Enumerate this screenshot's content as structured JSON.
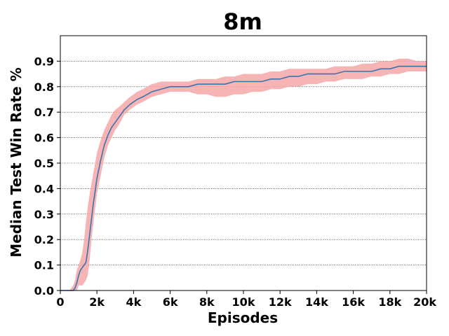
{
  "chart_data": {
    "type": "line",
    "title": "8m",
    "xlabel": "Episodes",
    "ylabel": "Median Test Win Rate %",
    "xlim": [
      0,
      20000
    ],
    "ylim": [
      0,
      1.0
    ],
    "grid": "horizontal-dotted",
    "x_ticks": [
      {
        "value": 0,
        "label": "0"
      },
      {
        "value": 2000,
        "label": "2k"
      },
      {
        "value": 4000,
        "label": "4k"
      },
      {
        "value": 6000,
        "label": "6k"
      },
      {
        "value": 8000,
        "label": "8k"
      },
      {
        "value": 10000,
        "label": "10k"
      },
      {
        "value": 12000,
        "label": "12k"
      },
      {
        "value": 14000,
        "label": "14k"
      },
      {
        "value": 16000,
        "label": "16k"
      },
      {
        "value": 18000,
        "label": "18k"
      },
      {
        "value": 20000,
        "label": "20k"
      }
    ],
    "y_ticks": [
      {
        "value": 0.0,
        "label": "0.0"
      },
      {
        "value": 0.1,
        "label": "0.1"
      },
      {
        "value": 0.2,
        "label": "0.2"
      },
      {
        "value": 0.3,
        "label": "0.3"
      },
      {
        "value": 0.4,
        "label": "0.4"
      },
      {
        "value": 0.5,
        "label": "0.5"
      },
      {
        "value": 0.6,
        "label": "0.6"
      },
      {
        "value": 0.7,
        "label": "0.7"
      },
      {
        "value": 0.8,
        "label": "0.8"
      },
      {
        "value": 0.9,
        "label": "0.9"
      }
    ],
    "colors": {
      "line": "#3b75af",
      "band": "#f4a7a7"
    },
    "series": [
      {
        "x": [
          0,
          500,
          700,
          800,
          900,
          1000,
          1100,
          1200,
          1300,
          1400,
          1500,
          1600,
          1700,
          1800,
          1900,
          2000,
          2200,
          2400,
          2600,
          2800,
          3000,
          3200,
          3500,
          3800,
          4000,
          4200,
          4500,
          5000,
          5500,
          6000,
          6500,
          7000,
          7500,
          8000,
          8500,
          9000,
          9500,
          10000,
          10500,
          11000,
          11500,
          12000,
          12500,
          13000,
          13500,
          14000,
          14500,
          15000,
          15500,
          16000,
          16500,
          17000,
          17500,
          18000,
          18500,
          19000,
          19500,
          20000
        ],
        "y": [
          0.0,
          0.0,
          0.0,
          0.01,
          0.03,
          0.06,
          0.08,
          0.09,
          0.1,
          0.11,
          0.16,
          0.22,
          0.28,
          0.34,
          0.39,
          0.44,
          0.51,
          0.57,
          0.61,
          0.64,
          0.66,
          0.68,
          0.71,
          0.73,
          0.74,
          0.75,
          0.76,
          0.78,
          0.79,
          0.8,
          0.8,
          0.8,
          0.81,
          0.81,
          0.81,
          0.81,
          0.82,
          0.82,
          0.82,
          0.82,
          0.83,
          0.83,
          0.84,
          0.84,
          0.85,
          0.85,
          0.85,
          0.85,
          0.86,
          0.86,
          0.86,
          0.86,
          0.87,
          0.87,
          0.88,
          0.88,
          0.88,
          0.88
        ],
        "lower": [
          0.0,
          0.0,
          0.0,
          0.0,
          0.0,
          0.02,
          0.02,
          0.02,
          0.03,
          0.04,
          0.06,
          0.12,
          0.2,
          0.26,
          0.32,
          0.38,
          0.45,
          0.52,
          0.57,
          0.6,
          0.63,
          0.65,
          0.69,
          0.71,
          0.72,
          0.73,
          0.74,
          0.76,
          0.77,
          0.78,
          0.78,
          0.78,
          0.77,
          0.77,
          0.76,
          0.76,
          0.77,
          0.77,
          0.78,
          0.78,
          0.79,
          0.79,
          0.8,
          0.8,
          0.81,
          0.81,
          0.82,
          0.82,
          0.83,
          0.83,
          0.83,
          0.84,
          0.84,
          0.85,
          0.85,
          0.86,
          0.86,
          0.86
        ],
        "upper": [
          0.0,
          0.0,
          0.02,
          0.04,
          0.08,
          0.1,
          0.12,
          0.15,
          0.2,
          0.27,
          0.33,
          0.38,
          0.42,
          0.46,
          0.5,
          0.54,
          0.59,
          0.63,
          0.66,
          0.69,
          0.71,
          0.72,
          0.74,
          0.76,
          0.77,
          0.78,
          0.79,
          0.81,
          0.82,
          0.82,
          0.82,
          0.82,
          0.83,
          0.83,
          0.83,
          0.84,
          0.84,
          0.85,
          0.85,
          0.85,
          0.86,
          0.86,
          0.87,
          0.87,
          0.87,
          0.87,
          0.87,
          0.88,
          0.88,
          0.88,
          0.89,
          0.89,
          0.9,
          0.9,
          0.91,
          0.91,
          0.9,
          0.9
        ]
      }
    ]
  }
}
